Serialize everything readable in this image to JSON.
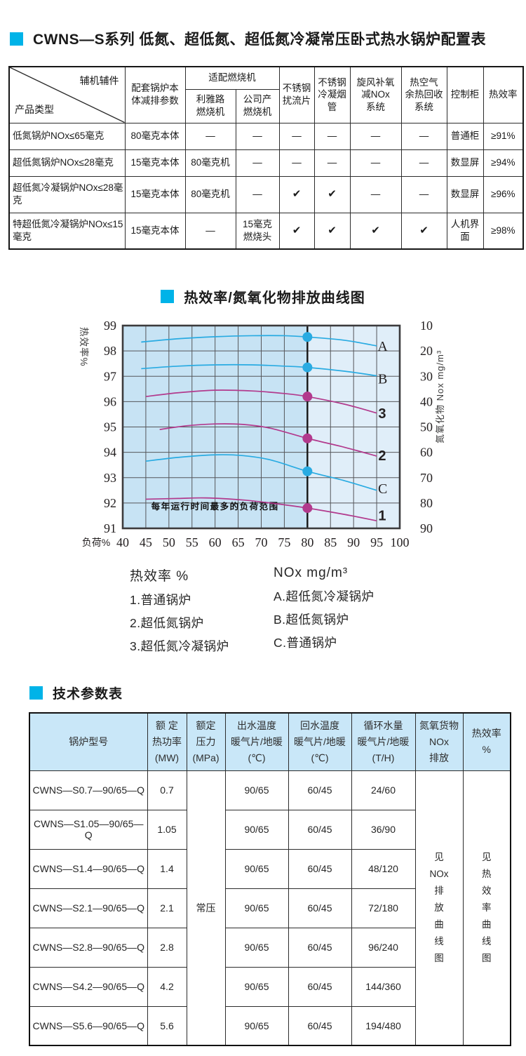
{
  "accent": "#00b3e8",
  "config_section": {
    "title": "CWNS—S系列 低氮、超低氮、超低氮冷凝常压卧式热水锅炉配置表"
  },
  "config_table": {
    "corner_top": "辅机辅件",
    "corner_bottom": "产品类型",
    "headers": {
      "body_params": "配套锅炉本\n体减排参数",
      "burner_group": "适配燃烧机",
      "burner_riello": "利雅路\n燃烧机",
      "burner_company": "公司产\n燃烧机",
      "spoiler": "不锈钢\n扰流片",
      "condensing_tube": "不锈钢\n冷凝烟\n管",
      "cyclone_system": "旋风补氧\n减NOx\n系统",
      "heat_recovery": "热空气\n余热回收\n系统",
      "control_cabinet": "控制柜",
      "efficiency": "热效率"
    },
    "rows": [
      {
        "product": "低氮锅炉NOx≤65毫克",
        "body": "80毫克本体",
        "riello": "—",
        "company": "—",
        "spoiler": "—",
        "cond": "—",
        "cyclone": "—",
        "heat": "—",
        "control": "普通柜",
        "eff": "≥91%"
      },
      {
        "product": "超低氮锅炉NOx≤28毫克",
        "body": "15毫克本体",
        "riello": "80毫克机",
        "company": "—",
        "spoiler": "—",
        "cond": "—",
        "cyclone": "—",
        "heat": "—",
        "control": "数显屏",
        "eff": "≥94%"
      },
      {
        "product": "超低氮冷凝锅炉NOx≤28毫克",
        "body": "15毫克本体",
        "riello": "80毫克机",
        "company": "—",
        "spoiler": "✔",
        "cond": "✔",
        "cyclone": "—",
        "heat": "—",
        "control": "数显屏",
        "eff": "≥96%"
      },
      {
        "product": "特超低氮冷凝锅炉NOx≤15毫克",
        "body": "15毫克本体",
        "riello": "—",
        "company": "15毫克\n燃烧头",
        "spoiler": "✔",
        "cond": "✔",
        "cyclone": "✔",
        "heat": "✔",
        "control": "人机界面",
        "eff": "≥98%"
      }
    ]
  },
  "chart_section": {
    "title": "热效率/氮氧化物排放曲线图"
  },
  "chart_data": {
    "type": "line",
    "title": "热效率/氮氧化物排放曲线图",
    "x_axis_label": "负荷%",
    "x_range": [
      40,
      100
    ],
    "x_ticks": [
      40,
      45,
      50,
      55,
      60,
      65,
      70,
      75,
      80,
      85,
      90,
      95,
      100
    ],
    "y_range": [
      91,
      99
    ],
    "left_axis": {
      "label": "热效率%",
      "ticks": [
        99,
        98,
        97,
        96,
        95,
        94,
        93,
        92,
        91
      ]
    },
    "right_axis": {
      "label": "氮氧化物 Nox mg/m³",
      "ticks": [
        10,
        20,
        30,
        40,
        50,
        60,
        70,
        80,
        90
      ]
    },
    "grid": true,
    "marker_x": 80,
    "highlight_region": {
      "from": 40,
      "to": 80
    },
    "annotation": "每年运行时间最多的负荷范围",
    "colors": {
      "blue": "#29abe2",
      "magenta": "#b23a8d"
    },
    "series": [
      {
        "name": "A",
        "meaning": "超低氮冷凝锅炉",
        "color": "#29abe2",
        "bold": false,
        "label_pos": [
          96.3,
          98.0
        ],
        "points": [
          [
            44,
            98.35
          ],
          [
            52,
            98.48
          ],
          [
            60,
            98.56
          ],
          [
            68,
            98.6
          ],
          [
            75,
            98.6
          ],
          [
            80,
            98.55
          ],
          [
            88,
            98.42
          ],
          [
            95,
            98.2
          ]
        ],
        "dot": [
          80,
          98.55
        ]
      },
      {
        "name": "B",
        "meaning": "超低氮锅炉",
        "color": "#29abe2",
        "bold": false,
        "label_pos": [
          96.3,
          96.72
        ],
        "points": [
          [
            44,
            97.3
          ],
          [
            52,
            97.4
          ],
          [
            60,
            97.45
          ],
          [
            68,
            97.45
          ],
          [
            75,
            97.4
          ],
          [
            80,
            97.35
          ],
          [
            88,
            97.2
          ],
          [
            95,
            97.02
          ]
        ],
        "dot": [
          80,
          97.35
        ]
      },
      {
        "name": "3",
        "meaning": "超低氮冷凝锅炉",
        "color": "#b23a8d",
        "bold": true,
        "label_pos": [
          96.2,
          95.35
        ],
        "points": [
          [
            45,
            96.2
          ],
          [
            52,
            96.35
          ],
          [
            60,
            96.45
          ],
          [
            68,
            96.42
          ],
          [
            75,
            96.32
          ],
          [
            80,
            96.2
          ],
          [
            88,
            95.9
          ],
          [
            95,
            95.55
          ]
        ],
        "dot": [
          80,
          96.2
        ]
      },
      {
        "name": "2",
        "meaning": "超低氮锅炉",
        "color": "#b23a8d",
        "bold": true,
        "label_pos": [
          96.2,
          93.68
        ],
        "points": [
          [
            48,
            94.9
          ],
          [
            54,
            95.05
          ],
          [
            60,
            95.12
          ],
          [
            66,
            95.1
          ],
          [
            72,
            94.95
          ],
          [
            80,
            94.55
          ],
          [
            88,
            94.2
          ],
          [
            95,
            93.85
          ]
        ],
        "dot": [
          80,
          94.55
        ]
      },
      {
        "name": "C",
        "meaning": "普通锅炉",
        "color": "#29abe2",
        "bold": false,
        "label_pos": [
          96.3,
          92.38
        ],
        "points": [
          [
            45,
            93.65
          ],
          [
            52,
            93.8
          ],
          [
            60,
            93.9
          ],
          [
            66,
            93.87
          ],
          [
            72,
            93.7
          ],
          [
            80,
            93.25
          ],
          [
            88,
            92.88
          ],
          [
            95,
            92.5
          ]
        ],
        "dot": [
          80,
          93.25
        ]
      },
      {
        "name": "1",
        "meaning": "普通锅炉",
        "color": "#b23a8d",
        "bold": true,
        "label_pos": [
          96.2,
          91.32
        ],
        "points": [
          [
            45,
            92.15
          ],
          [
            52,
            92.18
          ],
          [
            58,
            92.2
          ],
          [
            66,
            92.12
          ],
          [
            72,
            92.0
          ],
          [
            80,
            91.8
          ],
          [
            88,
            91.55
          ],
          [
            95,
            91.3
          ]
        ],
        "dot": [
          80,
          91.8
        ]
      }
    ]
  },
  "legend": {
    "left_title": "热效率 %",
    "left_items": [
      "1.普通锅炉",
      "2.超低氮锅炉",
      "3.超低氮冷凝锅炉"
    ],
    "right_title": "NOx mg/m³",
    "right_items": [
      "A.超低氮冷凝锅炉",
      "B.超低氮锅炉",
      "C.普通锅炉"
    ]
  },
  "params_section": {
    "title": "技术参数表"
  },
  "params_table": {
    "headers": [
      "锅炉型号",
      "额 定\n热功率\n(MW)",
      "额定\n压力\n(MPa)",
      "出水温度\n暖气片/地暖\n(℃)",
      "回水温度\n暖气片/地暖\n(℃)",
      "循环水量\n暖气片/地暖\n(T/H)",
      "氮氧货物\nNOx\n排放",
      "热效率\n%"
    ],
    "pressure_merged": "常压",
    "nox_note": "见\nNOx\n排\n放\n曲\n线\n图",
    "eff_note": "见\n热\n效\n率\n曲\n线\n图",
    "rows": [
      {
        "model": "CWNS—S0.7—90/65—Q",
        "power": "0.7",
        "supply": "90/65",
        "return": "60/45",
        "flow": "24/60"
      },
      {
        "model": "CWNS—S1.05—90/65—Q",
        "power": "1.05",
        "supply": "90/65",
        "return": "60/45",
        "flow": "36/90"
      },
      {
        "model": "CWNS—S1.4—90/65—Q",
        "power": "1.4",
        "supply": "90/65",
        "return": "60/45",
        "flow": "48/120"
      },
      {
        "model": "CWNS—S2.1—90/65—Q",
        "power": "2.1",
        "supply": "90/65",
        "return": "60/45",
        "flow": "72/180"
      },
      {
        "model": "CWNS—S2.8—90/65—Q",
        "power": "2.8",
        "supply": "90/65",
        "return": "60/45",
        "flow": "96/240"
      },
      {
        "model": "CWNS—S4.2—90/65—Q",
        "power": "4.2",
        "supply": "90/65",
        "return": "60/45",
        "flow": "144/360"
      },
      {
        "model": "CWNS—S5.6—90/65—Q",
        "power": "5.6",
        "supply": "90/65",
        "return": "60/45",
        "flow": "194/480"
      }
    ]
  }
}
